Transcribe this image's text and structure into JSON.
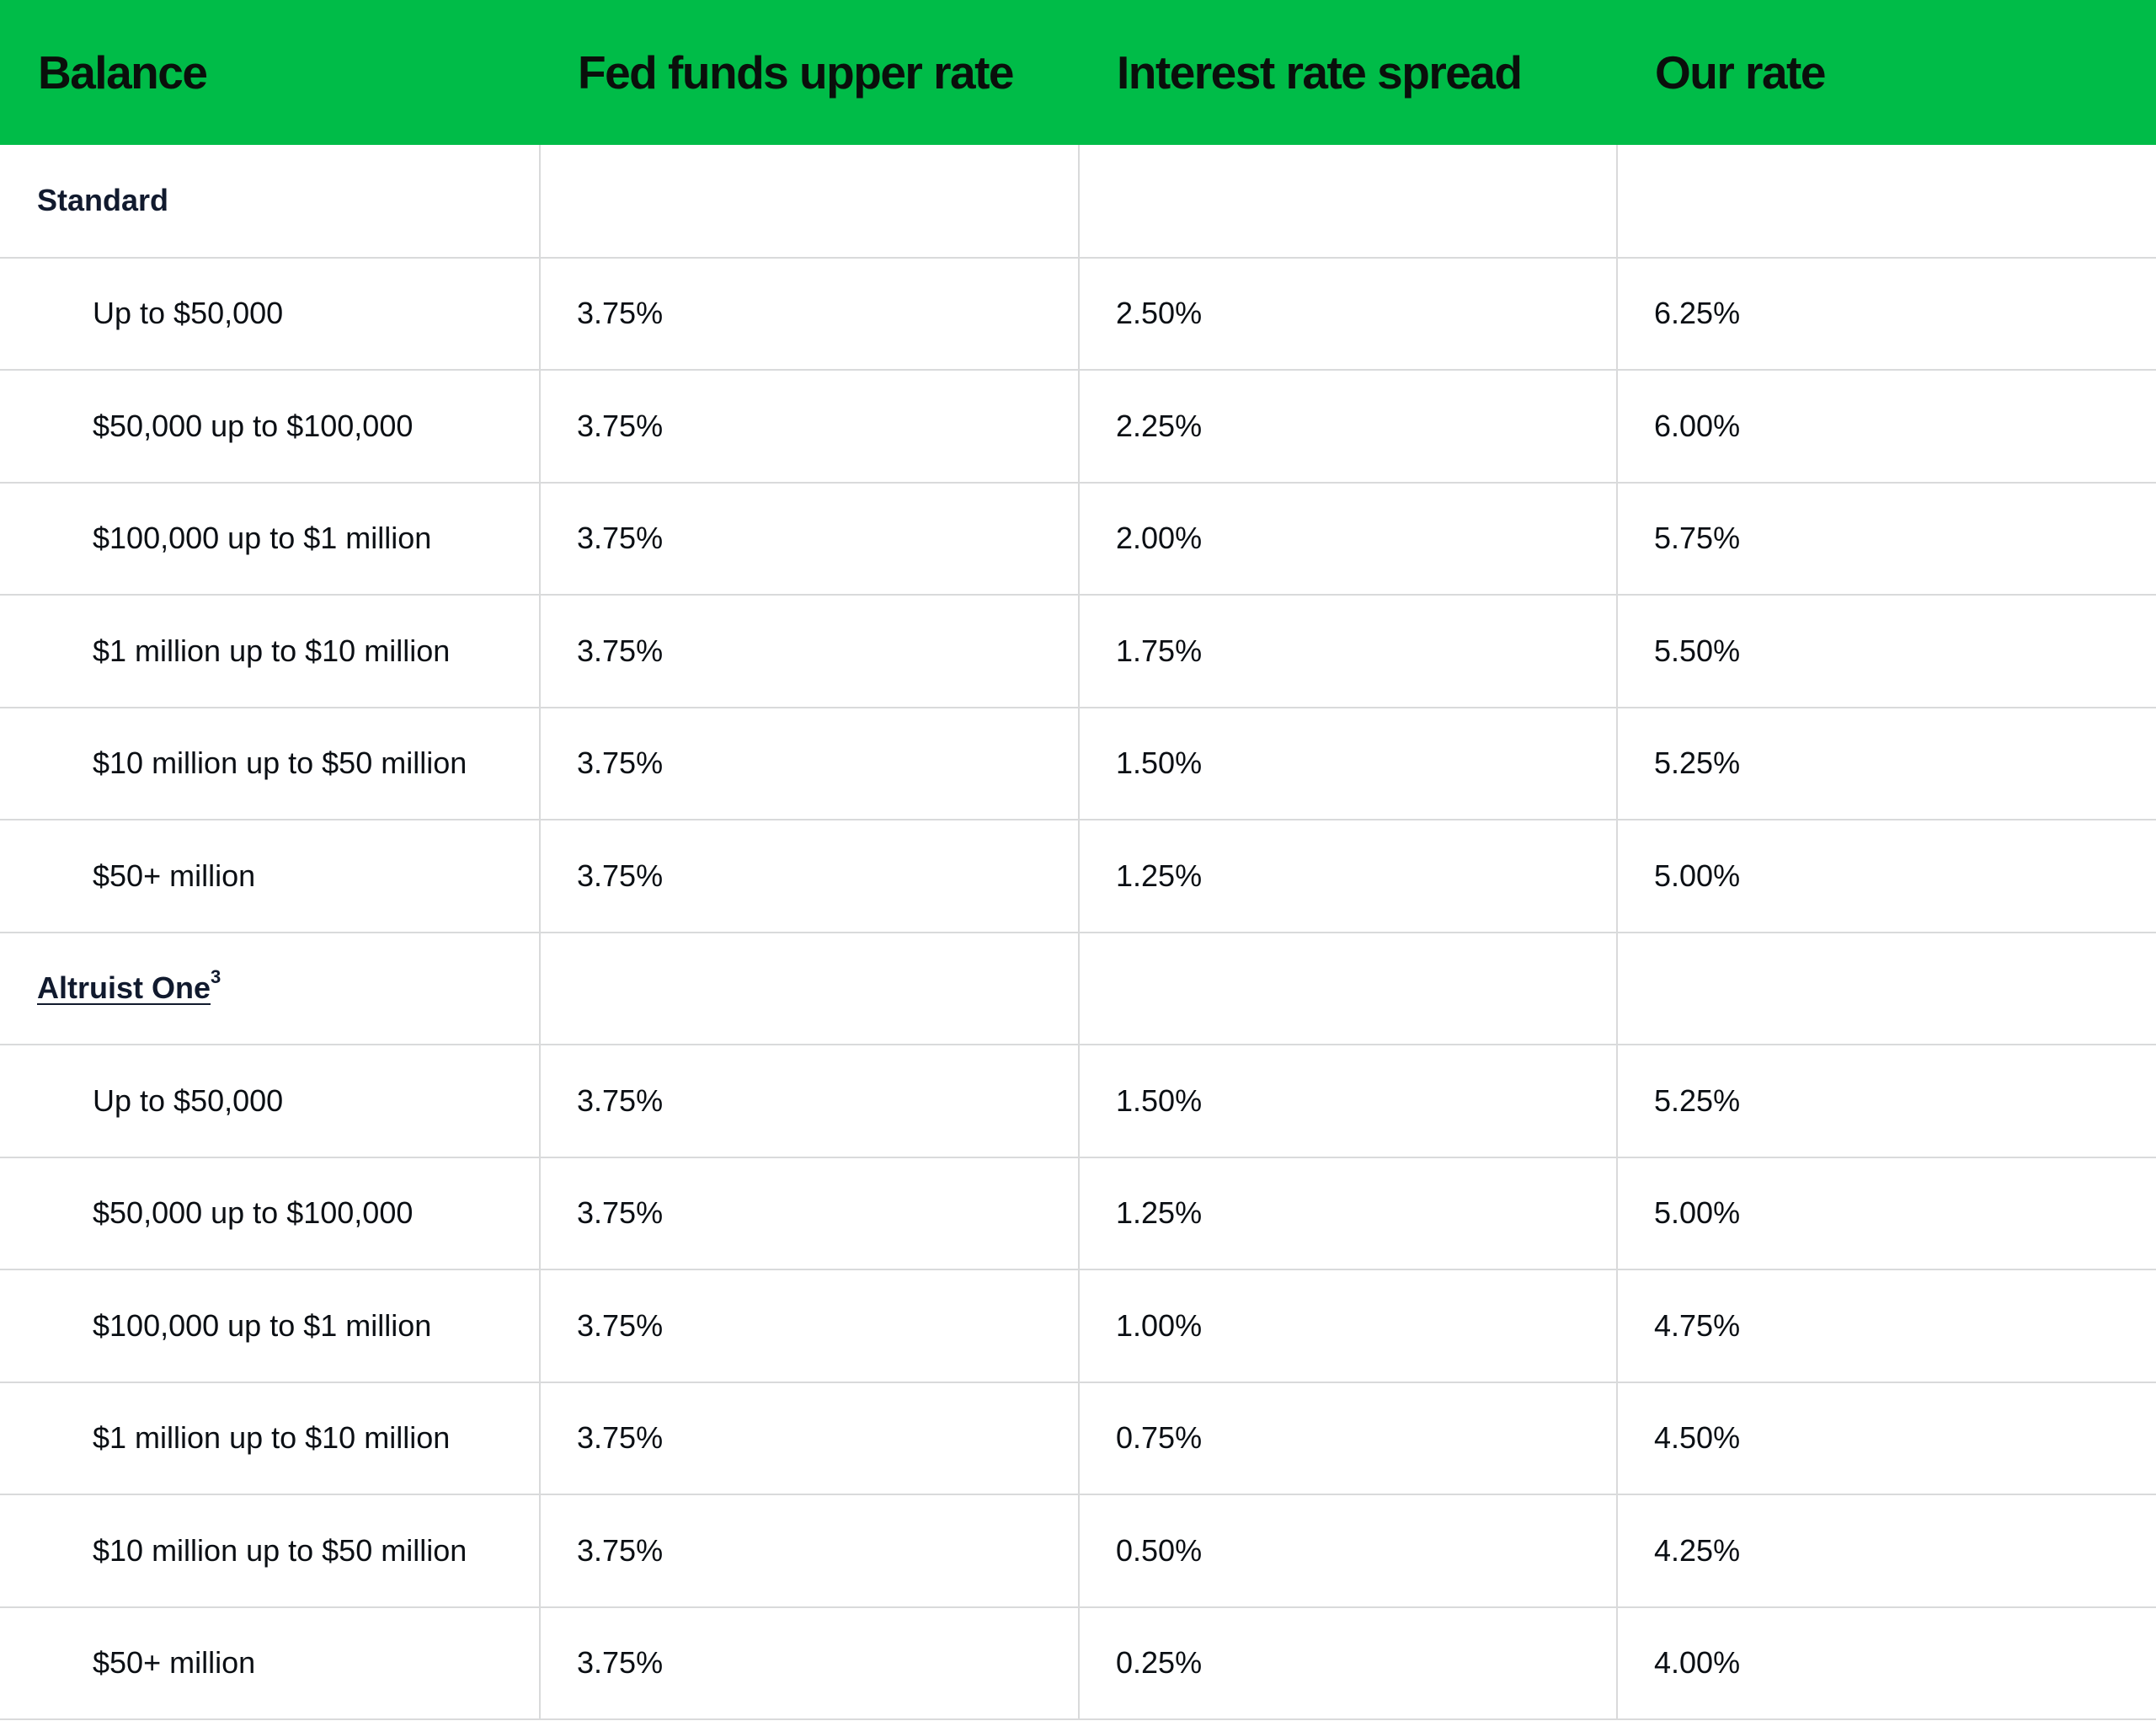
{
  "header": {
    "balance": "Balance",
    "fed_funds": "Fed funds upper rate",
    "spread": "Interest rate spread",
    "our_rate": "Our rate"
  },
  "groups": [
    {
      "name": "Standard",
      "rows": [
        {
          "balance": "Up to $50,000",
          "fed": "3.75%",
          "spread": "2.50%",
          "rate": "6.25%"
        },
        {
          "balance": "$50,000 up to $100,000",
          "fed": "3.75%",
          "spread": "2.25%",
          "rate": "6.00%"
        },
        {
          "balance": "$100,000 up to $1 million",
          "fed": "3.75%",
          "spread": "2.00%",
          "rate": "5.75%"
        },
        {
          "balance": "$1 million up to $10 million",
          "fed": "3.75%",
          "spread": "1.75%",
          "rate": "5.50%"
        },
        {
          "balance": "$10 million up to $50 million",
          "fed": "3.75%",
          "spread": "1.50%",
          "rate": "5.25%"
        },
        {
          "balance": "$50+ million",
          "fed": "3.75%",
          "spread": "1.25%",
          "rate": "5.00%"
        }
      ]
    },
    {
      "name": "Altruist One",
      "footnote": "3",
      "rows": [
        {
          "balance": "Up to $50,000",
          "fed": "3.75%",
          "spread": "1.50%",
          "rate": "5.25%"
        },
        {
          "balance": "$50,000 up to $100,000",
          "fed": "3.75%",
          "spread": "1.25%",
          "rate": "5.00%"
        },
        {
          "balance": "$100,000 up to $1 million",
          "fed": "3.75%",
          "spread": "1.00%",
          "rate": "4.75%"
        },
        {
          "balance": "$1 million up to $10 million",
          "fed": "3.75%",
          "spread": "0.75%",
          "rate": "4.50%"
        },
        {
          "balance": "$10 million up to $50 million",
          "fed": "3.75%",
          "spread": "0.50%",
          "rate": "4.25%"
        },
        {
          "balance": "$50+ million",
          "fed": "3.75%",
          "spread": "0.25%",
          "rate": "4.00%"
        }
      ]
    }
  ],
  "colors": {
    "header_bg": "#00bc48",
    "border": "#d9dadb",
    "text": "#0b0f14"
  }
}
